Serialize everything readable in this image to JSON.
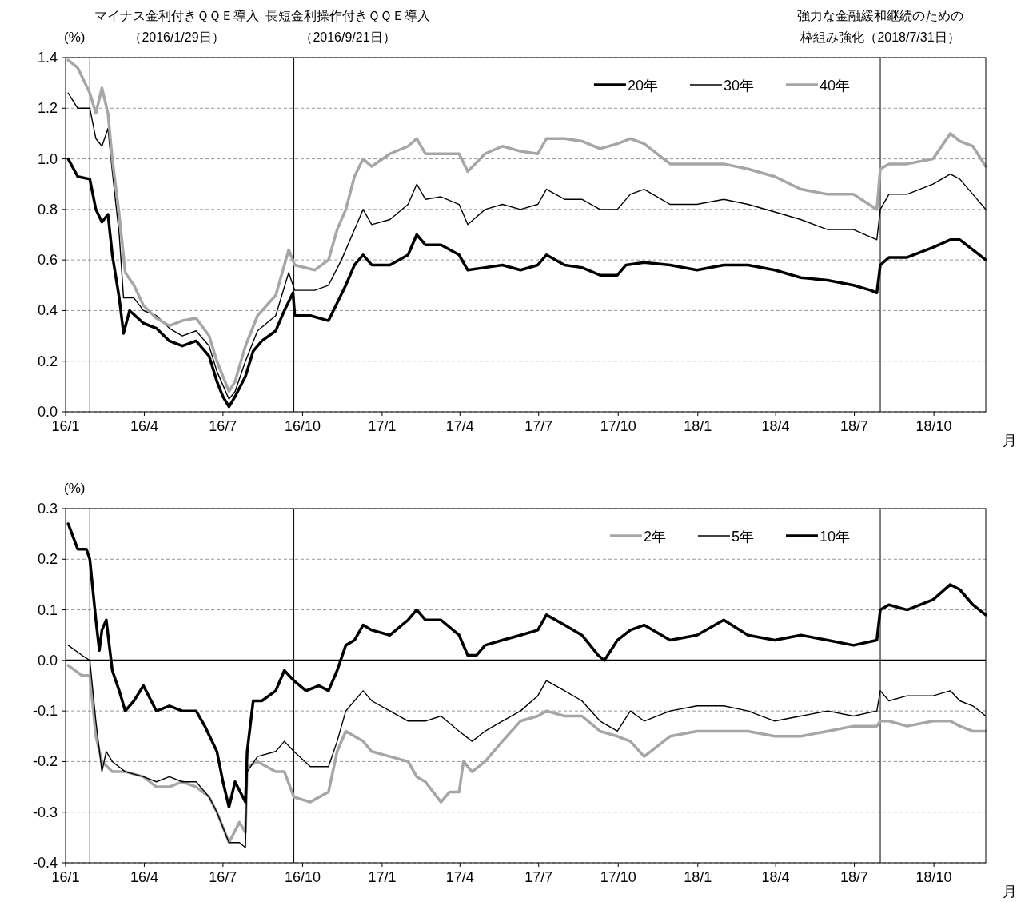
{
  "chart_data": [
    {
      "type": "line",
      "ylabel": "(%)",
      "xlabel": "月",
      "xlim": [
        "2016-01-01",
        "2018-11-30"
      ],
      "ylim": [
        0,
        1.4
      ],
      "xticks": [
        {
          "value": "2016-01-01",
          "label": "16/1"
        },
        {
          "value": "2016-04-01",
          "label": "16/4"
        },
        {
          "value": "2016-07-01",
          "label": "16/7"
        },
        {
          "value": "2016-10-01",
          "label": "16/10"
        },
        {
          "value": "2017-01-01",
          "label": "17/1"
        },
        {
          "value": "2017-04-01",
          "label": "17/4"
        },
        {
          "value": "2017-07-01",
          "label": "17/7"
        },
        {
          "value": "2017-10-01",
          "label": "17/10"
        },
        {
          "value": "2018-01-01",
          "label": "18/1"
        },
        {
          "value": "2018-04-01",
          "label": "18/4"
        },
        {
          "value": "2018-07-01",
          "label": "18/7"
        },
        {
          "value": "2018-10-01",
          "label": "18/10"
        }
      ],
      "yticks": [
        {
          "value": 0,
          "label": "0.0"
        },
        0.2,
        0.4,
        0.6,
        0.8,
        {
          "value": 1,
          "label": "1.0"
        },
        1.2,
        1.4
      ],
      "grid": "y",
      "legend": "top right",
      "ref_lines": [
        {
          "axis": "x",
          "value": "2016-01-29",
          "label": "マイナス金利付きＱＱＥ導入（2016/1/29日）",
          "color": "#000000"
        },
        {
          "axis": "x",
          "value": "2016-09-21",
          "label": "長短金利操作付きＱＱＥ導入（2016/9/21日）",
          "color": "#000000"
        },
        {
          "axis": "x",
          "value": "2018-07-31",
          "label": "強力な金融緩和継続のための枠組み強化（2018/7/31日）",
          "color": "#000000"
        }
      ],
      "series": [
        {
          "name": "20年",
          "color": "#000000",
          "x": [
            "2016-01-04",
            "2016-01-15",
            "2016-01-29",
            "2016-02-05",
            "2016-02-12",
            "2016-02-19",
            "2016-02-24",
            "2016-03-03",
            "2016-03-08",
            "2016-03-15",
            "2016-03-31",
            "2016-04-15",
            "2016-04-30",
            "2016-05-15",
            "2016-05-31",
            "2016-06-15",
            "2016-06-24",
            "2016-07-01",
            "2016-07-08",
            "2016-07-15",
            "2016-07-27",
            "2016-08-05",
            "2016-08-15",
            "2016-08-31",
            "2016-09-10",
            "2016-09-20",
            "2016-09-22",
            "2016-10-10",
            "2016-10-31",
            "2016-11-10",
            "2016-11-20",
            "2016-11-30",
            "2016-12-10",
            "2016-12-20",
            "2017-01-10",
            "2017-01-31",
            "2017-02-10",
            "2017-02-20",
            "2017-03-10",
            "2017-03-31",
            "2017-04-10",
            "2017-04-30",
            "2017-05-20",
            "2017-06-10",
            "2017-06-30",
            "2017-07-10",
            "2017-07-31",
            "2017-08-20",
            "2017-09-10",
            "2017-09-30",
            "2017-10-10",
            "2017-10-31",
            "2017-11-30",
            "2017-12-31",
            "2018-01-31",
            "2018-02-28",
            "2018-03-31",
            "2018-04-30",
            "2018-05-31",
            "2018-06-30",
            "2018-07-20",
            "2018-07-27",
            "2018-07-31",
            "2018-08-10",
            "2018-08-31",
            "2018-09-30",
            "2018-10-20",
            "2018-10-31",
            "2018-11-15",
            "2018-11-30"
          ],
          "values": [
            1.0,
            0.93,
            0.92,
            0.8,
            0.75,
            0.78,
            0.62,
            0.45,
            0.31,
            0.4,
            0.35,
            0.33,
            0.28,
            0.26,
            0.28,
            0.22,
            0.12,
            0.06,
            0.02,
            0.06,
            0.14,
            0.24,
            0.28,
            0.32,
            0.4,
            0.47,
            0.38,
            0.38,
            0.36,
            0.43,
            0.5,
            0.58,
            0.62,
            0.58,
            0.58,
            0.62,
            0.7,
            0.66,
            0.66,
            0.62,
            0.56,
            0.57,
            0.58,
            0.56,
            0.58,
            0.62,
            0.58,
            0.57,
            0.54,
            0.54,
            0.58,
            0.59,
            0.58,
            0.56,
            0.58,
            0.58,
            0.56,
            0.53,
            0.52,
            0.5,
            0.48,
            0.47,
            0.58,
            0.61,
            0.61,
            0.65,
            0.68,
            0.68,
            0.64,
            0.6
          ]
        },
        {
          "name": "30年",
          "color": "#000000",
          "x": [
            "2016-01-04",
            "2016-01-15",
            "2016-01-29",
            "2016-02-05",
            "2016-02-12",
            "2016-02-19",
            "2016-02-24",
            "2016-03-03",
            "2016-03-08",
            "2016-03-20",
            "2016-03-31",
            "2016-04-15",
            "2016-04-30",
            "2016-05-15",
            "2016-05-31",
            "2016-06-15",
            "2016-06-24",
            "2016-07-08",
            "2016-07-15",
            "2016-07-27",
            "2016-08-10",
            "2016-08-31",
            "2016-09-15",
            "2016-09-22",
            "2016-10-15",
            "2016-10-31",
            "2016-11-15",
            "2016-11-30",
            "2016-12-10",
            "2016-12-20",
            "2017-01-10",
            "2017-01-31",
            "2017-02-10",
            "2017-02-20",
            "2017-03-10",
            "2017-03-31",
            "2017-04-10",
            "2017-04-30",
            "2017-05-20",
            "2017-06-10",
            "2017-06-30",
            "2017-07-10",
            "2017-07-31",
            "2017-08-20",
            "2017-09-10",
            "2017-09-30",
            "2017-10-15",
            "2017-10-31",
            "2017-11-30",
            "2017-12-31",
            "2018-01-31",
            "2018-02-28",
            "2018-03-31",
            "2018-04-30",
            "2018-05-31",
            "2018-06-30",
            "2018-07-27",
            "2018-07-31",
            "2018-08-10",
            "2018-08-31",
            "2018-09-30",
            "2018-10-20",
            "2018-10-31",
            "2018-11-15",
            "2018-11-30"
          ],
          "values": [
            1.26,
            1.2,
            1.2,
            1.08,
            1.05,
            1.12,
            0.95,
            0.7,
            0.45,
            0.45,
            0.4,
            0.38,
            0.33,
            0.3,
            0.32,
            0.26,
            0.16,
            0.05,
            0.08,
            0.2,
            0.32,
            0.38,
            0.55,
            0.48,
            0.48,
            0.5,
            0.6,
            0.72,
            0.8,
            0.74,
            0.76,
            0.82,
            0.9,
            0.84,
            0.85,
            0.82,
            0.74,
            0.8,
            0.82,
            0.8,
            0.82,
            0.88,
            0.84,
            0.84,
            0.8,
            0.8,
            0.86,
            0.88,
            0.82,
            0.82,
            0.84,
            0.82,
            0.79,
            0.76,
            0.72,
            0.72,
            0.68,
            0.8,
            0.86,
            0.86,
            0.9,
            0.94,
            0.92,
            0.86,
            0.8
          ]
        },
        {
          "name": "40年",
          "color": "#a6a6a6",
          "x": [
            "2016-01-04",
            "2016-01-15",
            "2016-01-29",
            "2016-02-05",
            "2016-02-12",
            "2016-02-19",
            "2016-02-24",
            "2016-03-03",
            "2016-03-10",
            "2016-03-20",
            "2016-03-31",
            "2016-04-15",
            "2016-04-30",
            "2016-05-15",
            "2016-05-31",
            "2016-06-15",
            "2016-06-24",
            "2016-07-08",
            "2016-07-15",
            "2016-07-27",
            "2016-08-10",
            "2016-08-31",
            "2016-09-15",
            "2016-09-22",
            "2016-10-15",
            "2016-10-31",
            "2016-11-10",
            "2016-11-20",
            "2016-11-30",
            "2016-12-10",
            "2016-12-20",
            "2017-01-10",
            "2017-01-31",
            "2017-02-10",
            "2017-02-20",
            "2017-03-10",
            "2017-03-31",
            "2017-04-10",
            "2017-04-30",
            "2017-05-20",
            "2017-06-10",
            "2017-06-30",
            "2017-07-10",
            "2017-07-31",
            "2017-08-20",
            "2017-09-10",
            "2017-09-30",
            "2017-10-15",
            "2017-10-31",
            "2017-11-30",
            "2017-12-31",
            "2018-01-31",
            "2018-02-28",
            "2018-03-31",
            "2018-04-30",
            "2018-05-31",
            "2018-06-30",
            "2018-07-27",
            "2018-07-31",
            "2018-08-10",
            "2018-08-31",
            "2018-09-30",
            "2018-10-20",
            "2018-10-31",
            "2018-11-15",
            "2018-11-30"
          ],
          "values": [
            1.39,
            1.36,
            1.26,
            1.18,
            1.28,
            1.18,
            1.0,
            0.78,
            0.55,
            0.5,
            0.42,
            0.37,
            0.34,
            0.36,
            0.37,
            0.3,
            0.2,
            0.08,
            0.12,
            0.26,
            0.38,
            0.46,
            0.64,
            0.58,
            0.56,
            0.6,
            0.72,
            0.8,
            0.93,
            1.0,
            0.97,
            1.02,
            1.05,
            1.08,
            1.02,
            1.02,
            1.02,
            0.95,
            1.02,
            1.05,
            1.03,
            1.02,
            1.08,
            1.08,
            1.07,
            1.04,
            1.06,
            1.08,
            1.06,
            0.98,
            0.98,
            0.98,
            0.96,
            0.93,
            0.88,
            0.86,
            0.86,
            0.8,
            0.96,
            0.98,
            0.98,
            1.0,
            1.1,
            1.07,
            1.05,
            0.97
          ]
        }
      ]
    },
    {
      "type": "line",
      "ylabel": "(%)",
      "xlabel": "月",
      "xlim": [
        "2016-01-01",
        "2018-11-30"
      ],
      "ylim": [
        -0.4,
        0.3
      ],
      "xticks": [
        {
          "value": "2016-01-01",
          "label": "16/1"
        },
        {
          "value": "2016-04-01",
          "label": "16/4"
        },
        {
          "value": "2016-07-01",
          "label": "16/7"
        },
        {
          "value": "2016-10-01",
          "label": "16/10"
        },
        {
          "value": "2017-01-01",
          "label": "17/1"
        },
        {
          "value": "2017-04-01",
          "label": "17/4"
        },
        {
          "value": "2017-07-01",
          "label": "17/7"
        },
        {
          "value": "2017-10-01",
          "label": "17/10"
        },
        {
          "value": "2018-01-01",
          "label": "18/1"
        },
        {
          "value": "2018-04-01",
          "label": "18/4"
        },
        {
          "value": "2018-07-01",
          "label": "18/7"
        },
        {
          "value": "2018-10-01",
          "label": "18/10"
        }
      ],
      "yticks": [
        {
          "value": -0.4,
          "label": "-0.4"
        },
        {
          "value": -0.3,
          "label": "-0.3"
        },
        {
          "value": -0.2,
          "label": "-0.2"
        },
        {
          "value": -0.1,
          "label": "-0.1"
        },
        {
          "value": 0,
          "label": "0.0"
        },
        0.1,
        0.2,
        0.3
      ],
      "grid": "y",
      "legend": "top right",
      "ref_lines": [
        {
          "axis": "x",
          "value": "2016-01-29",
          "color": "#000000"
        },
        {
          "axis": "x",
          "value": "2016-09-21",
          "color": "#000000"
        },
        {
          "axis": "x",
          "value": "2018-07-31",
          "color": "#000000"
        },
        {
          "axis": "y",
          "value": 0,
          "color": "#000000"
        }
      ],
      "series": [
        {
          "name": "2年",
          "color": "#a6a6a6",
          "x": [
            "2016-01-04",
            "2016-01-20",
            "2016-01-29",
            "2016-02-05",
            "2016-02-12",
            "2016-02-24",
            "2016-03-10",
            "2016-03-31",
            "2016-04-15",
            "2016-04-30",
            "2016-05-15",
            "2016-05-31",
            "2016-06-15",
            "2016-06-24",
            "2016-07-08",
            "2016-07-20",
            "2016-07-27",
            "2016-07-29",
            "2016-08-10",
            "2016-08-31",
            "2016-09-10",
            "2016-09-21",
            "2016-10-10",
            "2016-10-31",
            "2016-11-10",
            "2016-11-20",
            "2016-11-30",
            "2016-12-10",
            "2016-12-20",
            "2017-01-10",
            "2017-01-31",
            "2017-02-10",
            "2017-02-20",
            "2017-03-10",
            "2017-03-20",
            "2017-03-31",
            "2017-04-05",
            "2017-04-15",
            "2017-04-30",
            "2017-05-20",
            "2017-06-10",
            "2017-06-30",
            "2017-07-10",
            "2017-07-31",
            "2017-08-20",
            "2017-09-10",
            "2017-09-30",
            "2017-10-15",
            "2017-10-31",
            "2017-11-30",
            "2017-12-31",
            "2018-01-31",
            "2018-02-28",
            "2018-03-31",
            "2018-04-30",
            "2018-05-31",
            "2018-06-30",
            "2018-07-27",
            "2018-07-31",
            "2018-08-10",
            "2018-08-31",
            "2018-09-30",
            "2018-10-20",
            "2018-10-31",
            "2018-11-15",
            "2018-11-30"
          ],
          "values": [
            -0.01,
            -0.03,
            -0.03,
            -0.15,
            -0.2,
            -0.22,
            -0.22,
            -0.23,
            -0.25,
            -0.25,
            -0.24,
            -0.25,
            -0.27,
            -0.3,
            -0.36,
            -0.32,
            -0.34,
            -0.21,
            -0.2,
            -0.22,
            -0.22,
            -0.27,
            -0.28,
            -0.26,
            -0.18,
            -0.14,
            -0.15,
            -0.16,
            -0.18,
            -0.19,
            -0.2,
            -0.23,
            -0.24,
            -0.28,
            -0.26,
            -0.26,
            -0.2,
            -0.22,
            -0.2,
            -0.16,
            -0.12,
            -0.11,
            -0.1,
            -0.11,
            -0.11,
            -0.14,
            -0.15,
            -0.16,
            -0.19,
            -0.15,
            -0.14,
            -0.14,
            -0.14,
            -0.15,
            -0.15,
            -0.14,
            -0.13,
            -0.13,
            -0.12,
            -0.12,
            -0.13,
            -0.12,
            -0.12,
            -0.13,
            -0.14,
            -0.14
          ]
        },
        {
          "name": "5年",
          "color": "#000000",
          "x": [
            "2016-01-04",
            "2016-01-20",
            "2016-01-29",
            "2016-02-05",
            "2016-02-12",
            "2016-02-17",
            "2016-02-24",
            "2016-03-10",
            "2016-03-31",
            "2016-04-15",
            "2016-04-30",
            "2016-05-15",
            "2016-05-31",
            "2016-06-15",
            "2016-06-24",
            "2016-07-08",
            "2016-07-20",
            "2016-07-27",
            "2016-07-29",
            "2016-08-10",
            "2016-08-31",
            "2016-09-10",
            "2016-09-21",
            "2016-10-10",
            "2016-10-31",
            "2016-11-10",
            "2016-11-20",
            "2016-11-30",
            "2016-12-10",
            "2016-12-20",
            "2017-01-10",
            "2017-01-31",
            "2017-02-20",
            "2017-03-10",
            "2017-03-31",
            "2017-04-15",
            "2017-04-30",
            "2017-05-20",
            "2017-06-10",
            "2017-06-30",
            "2017-07-10",
            "2017-07-31",
            "2017-08-20",
            "2017-09-10",
            "2017-09-30",
            "2017-10-15",
            "2017-10-31",
            "2017-11-30",
            "2017-12-31",
            "2018-01-31",
            "2018-02-28",
            "2018-03-31",
            "2018-04-30",
            "2018-05-31",
            "2018-06-30",
            "2018-07-27",
            "2018-07-31",
            "2018-08-10",
            "2018-08-31",
            "2018-09-30",
            "2018-10-20",
            "2018-10-31",
            "2018-11-15",
            "2018-11-30"
          ],
          "values": [
            0.03,
            0.01,
            0.0,
            -0.12,
            -0.22,
            -0.18,
            -0.2,
            -0.22,
            -0.23,
            -0.24,
            -0.23,
            -0.24,
            -0.24,
            -0.27,
            -0.3,
            -0.36,
            -0.36,
            -0.37,
            -0.22,
            -0.19,
            -0.18,
            -0.16,
            -0.18,
            -0.21,
            -0.21,
            -0.16,
            -0.1,
            -0.08,
            -0.06,
            -0.08,
            -0.1,
            -0.12,
            -0.12,
            -0.11,
            -0.14,
            -0.16,
            -0.14,
            -0.12,
            -0.1,
            -0.07,
            -0.04,
            -0.06,
            -0.08,
            -0.12,
            -0.14,
            -0.1,
            -0.12,
            -0.1,
            -0.09,
            -0.09,
            -0.1,
            -0.12,
            -0.11,
            -0.1,
            -0.11,
            -0.1,
            -0.06,
            -0.08,
            -0.07,
            -0.07,
            -0.06,
            -0.08,
            -0.09,
            -0.11
          ]
        },
        {
          "name": "10年",
          "color": "#000000",
          "x": [
            "2016-01-04",
            "2016-01-15",
            "2016-01-25",
            "2016-01-29",
            "2016-02-05",
            "2016-02-09",
            "2016-02-12",
            "2016-02-17",
            "2016-02-24",
            "2016-03-03",
            "2016-03-10",
            "2016-03-20",
            "2016-03-31",
            "2016-04-15",
            "2016-04-30",
            "2016-05-15",
            "2016-05-31",
            "2016-06-10",
            "2016-06-24",
            "2016-07-01",
            "2016-07-08",
            "2016-07-15",
            "2016-07-27",
            "2016-07-29",
            "2016-08-05",
            "2016-08-15",
            "2016-08-31",
            "2016-09-10",
            "2016-09-21",
            "2016-10-05",
            "2016-10-20",
            "2016-10-31",
            "2016-11-10",
            "2016-11-20",
            "2016-11-30",
            "2016-12-10",
            "2016-12-20",
            "2017-01-10",
            "2017-01-31",
            "2017-02-10",
            "2017-02-20",
            "2017-03-10",
            "2017-03-31",
            "2017-04-10",
            "2017-04-20",
            "2017-04-30",
            "2017-05-20",
            "2017-06-10",
            "2017-06-30",
            "2017-07-10",
            "2017-07-31",
            "2017-08-20",
            "2017-09-08",
            "2017-09-15",
            "2017-09-30",
            "2017-10-15",
            "2017-10-31",
            "2017-11-30",
            "2017-12-31",
            "2018-01-31",
            "2018-02-28",
            "2018-03-31",
            "2018-04-30",
            "2018-05-31",
            "2018-06-30",
            "2018-07-27",
            "2018-07-31",
            "2018-08-10",
            "2018-08-31",
            "2018-09-30",
            "2018-10-20",
            "2018-10-31",
            "2018-11-15",
            "2018-11-30"
          ],
          "values": [
            0.27,
            0.22,
            0.22,
            0.2,
            0.08,
            0.02,
            0.06,
            0.08,
            -0.02,
            -0.06,
            -0.1,
            -0.08,
            -0.05,
            -0.1,
            -0.09,
            -0.1,
            -0.1,
            -0.13,
            -0.18,
            -0.24,
            -0.29,
            -0.24,
            -0.28,
            -0.18,
            -0.08,
            -0.08,
            -0.06,
            -0.02,
            -0.04,
            -0.06,
            -0.05,
            -0.06,
            -0.02,
            0.03,
            0.04,
            0.07,
            0.06,
            0.05,
            0.08,
            0.1,
            0.08,
            0.08,
            0.05,
            0.01,
            0.01,
            0.03,
            0.04,
            0.05,
            0.06,
            0.09,
            0.07,
            0.05,
            0.01,
            0.0,
            0.04,
            0.06,
            0.07,
            0.04,
            0.05,
            0.08,
            0.05,
            0.04,
            0.05,
            0.04,
            0.03,
            0.04,
            0.1,
            0.11,
            0.1,
            0.12,
            0.15,
            0.14,
            0.11,
            0.09
          ]
        }
      ]
    }
  ]
}
